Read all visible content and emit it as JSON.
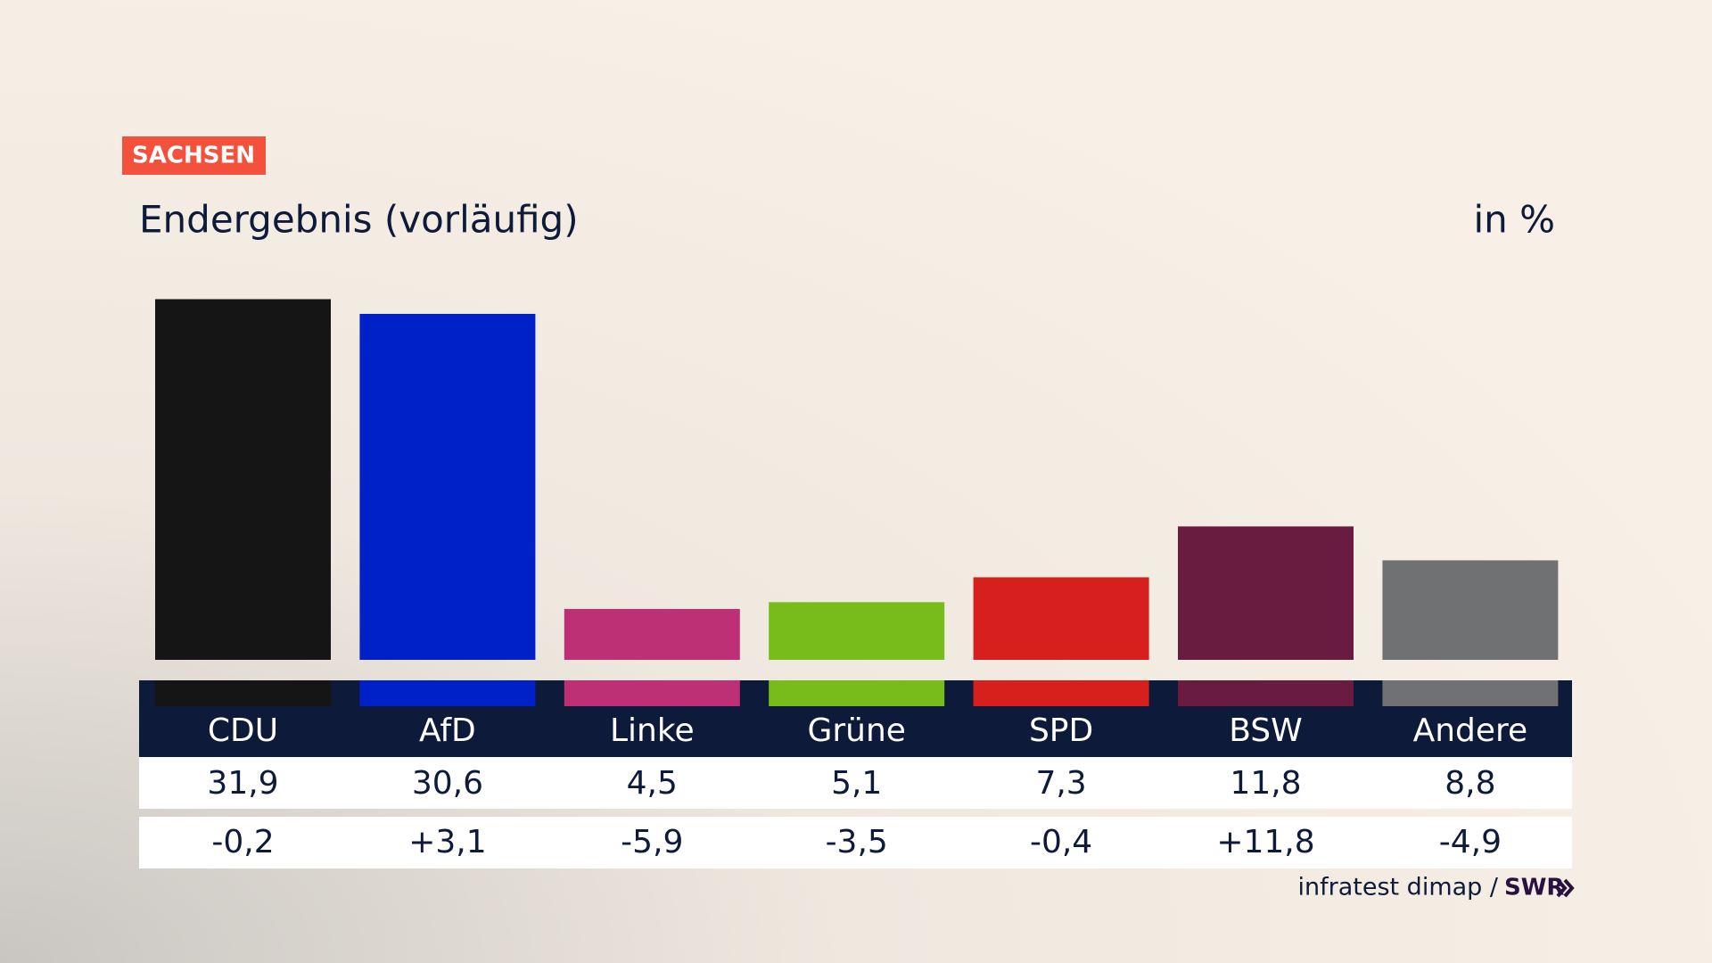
{
  "chart_data": {
    "type": "bar",
    "tag": "SACHSEN",
    "title": "Endergebnis (vorläufig)",
    "unit": "in %",
    "categories": [
      "CDU",
      "AfD",
      "Linke",
      "Grüne",
      "SPD",
      "BSW",
      "Andere"
    ],
    "values": [
      31.9,
      30.6,
      4.5,
      5.1,
      7.3,
      11.8,
      8.8
    ],
    "value_labels": [
      "31,9",
      "30,6",
      "4,5",
      "5,1",
      "7,3",
      "11,8",
      "8,8"
    ],
    "changes": [
      -0.2,
      3.1,
      -5.9,
      -3.5,
      -0.4,
      11.8,
      -4.9
    ],
    "change_labels": [
      "-0,2",
      "+3,1",
      "-5,9",
      "-3,5",
      "-0,4",
      "+11,8",
      "-4,9"
    ],
    "colors": [
      "#151515",
      "#0021c8",
      "#bd3075",
      "#78bc1b",
      "#d71f1d",
      "#6a1b40",
      "#707173"
    ],
    "source": "infratest dimap /",
    "brand": "SWR"
  }
}
